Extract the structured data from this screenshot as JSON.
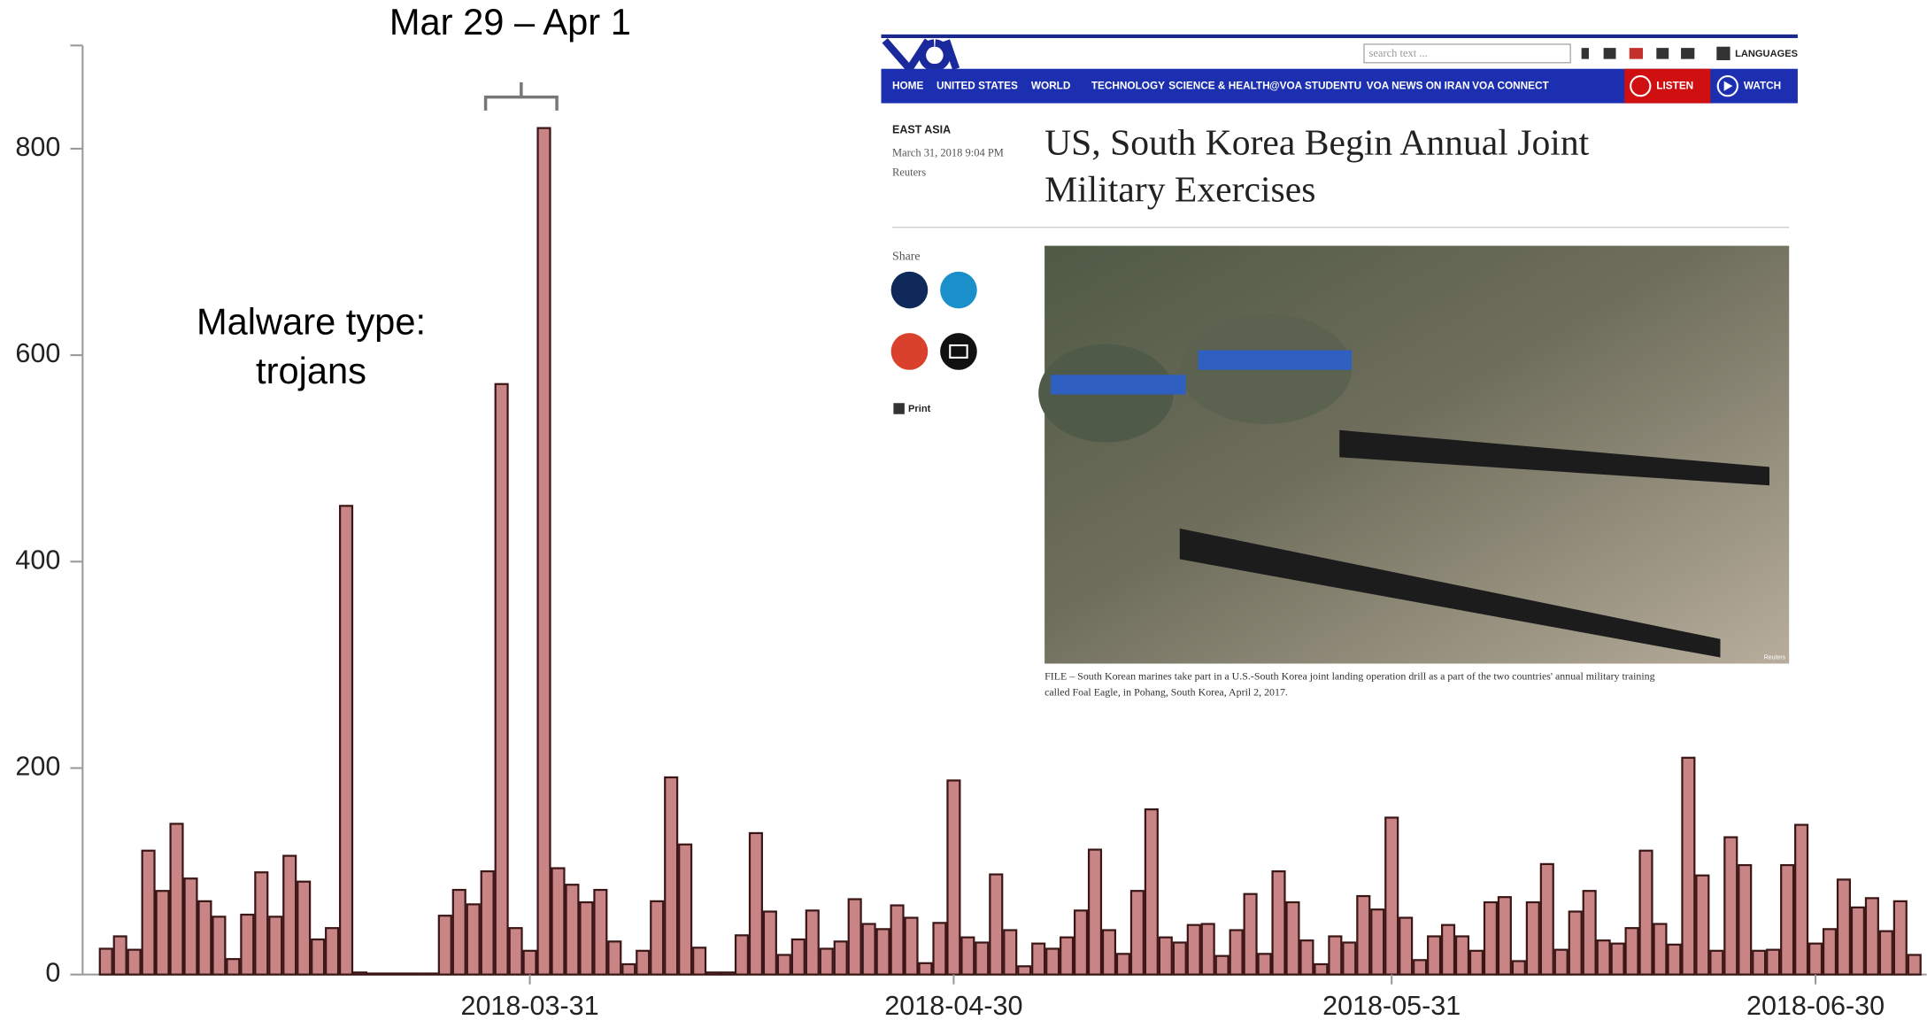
{
  "chart_data": {
    "type": "bar",
    "annotations": [
      "Mar 29 – Apr 1",
      "Malware type:",
      "trojans"
    ],
    "categories": [
      null,
      null,
      null,
      null,
      null,
      null,
      null,
      null,
      null,
      null,
      null,
      null,
      null,
      null,
      null,
      null,
      null,
      null,
      null,
      null,
      null,
      null,
      null,
      null,
      null,
      null,
      null,
      null,
      null,
      null,
      "2018-03-31",
      null,
      null,
      null,
      null,
      null,
      null,
      null,
      null,
      null,
      null,
      null,
      null,
      null,
      null,
      null,
      null,
      null,
      null,
      null,
      null,
      null,
      null,
      null,
      null,
      null,
      null,
      null,
      null,
      null,
      "2018-04-30",
      null,
      null,
      null,
      null,
      null,
      null,
      null,
      null,
      null,
      null,
      null,
      null,
      null,
      null,
      null,
      null,
      null,
      null,
      null,
      null,
      null,
      null,
      null,
      null,
      null,
      null,
      null,
      null,
      null,
      null,
      "2018-05-31",
      null,
      null,
      null,
      null,
      null,
      null,
      null,
      null,
      null,
      null,
      null,
      null,
      null,
      null,
      null,
      null,
      null,
      null,
      null,
      null,
      null,
      null,
      null,
      null,
      null,
      null,
      null,
      null,
      null,
      "2018-06-30",
      null,
      null,
      null,
      null,
      null,
      null,
      null
    ],
    "values": [
      25,
      37,
      24,
      120,
      81,
      146,
      93,
      71,
      56,
      15,
      58,
      99,
      56,
      115,
      90,
      34,
      45,
      454,
      2,
      1,
      1,
      1,
      1,
      1,
      57,
      82,
      68,
      100,
      572,
      45,
      23,
      820,
      103,
      87,
      70,
      82,
      32,
      10,
      23,
      71,
      191,
      126,
      26,
      2,
      2,
      38,
      137,
      61,
      19,
      34,
      62,
      25,
      32,
      73,
      49,
      44,
      67,
      55,
      11,
      50,
      188,
      36,
      31,
      97,
      43,
      8,
      30,
      25,
      36,
      62,
      121,
      43,
      20,
      81,
      160,
      36,
      31,
      48,
      49,
      18,
      43,
      78,
      20,
      100,
      70,
      33,
      10,
      37,
      31,
      76,
      63,
      152,
      55,
      14,
      37,
      48,
      37,
      23,
      70,
      75,
      13,
      70,
      107,
      24,
      61,
      81,
      33,
      30,
      45,
      120,
      49,
      29,
      210,
      96,
      23,
      133,
      106,
      23,
      24,
      106,
      145,
      30,
      44,
      92,
      65,
      74,
      42,
      71,
      19
    ],
    "color": "#c98585",
    "edge_color": "#3b1616",
    "ylim": [
      0,
      900
    ],
    "yticks": [
      0,
      200,
      400,
      600,
      800
    ]
  },
  "inset": {
    "search": "search text ...",
    "languages": "LANGUAGES",
    "nav": [
      "HOME",
      "UNITED STATES",
      "WORLD",
      "TECHNOLOGY",
      "SCIENCE & HEALTH",
      "@VOA STUDENTU",
      "VOA NEWS ON IRAN",
      "VOA CONNECT"
    ],
    "listen": "LISTEN",
    "watch": "WATCH",
    "section": "EAST ASIA",
    "date": "March 31, 2018 9:04 PM",
    "source": "Reuters",
    "title": [
      "US, South Korea Begin Annual Joint",
      "Military Exercises"
    ],
    "share": "Share",
    "print": "Print",
    "photo_credit": "Reuters",
    "caption": [
      "FILE – South Korean marines take part in a U.S.-South Korea joint landing operation drill as a part of the two countries' annual military training",
      "called Foal Eagle, in Pohang, South Korea, April 2, 2017."
    ]
  }
}
